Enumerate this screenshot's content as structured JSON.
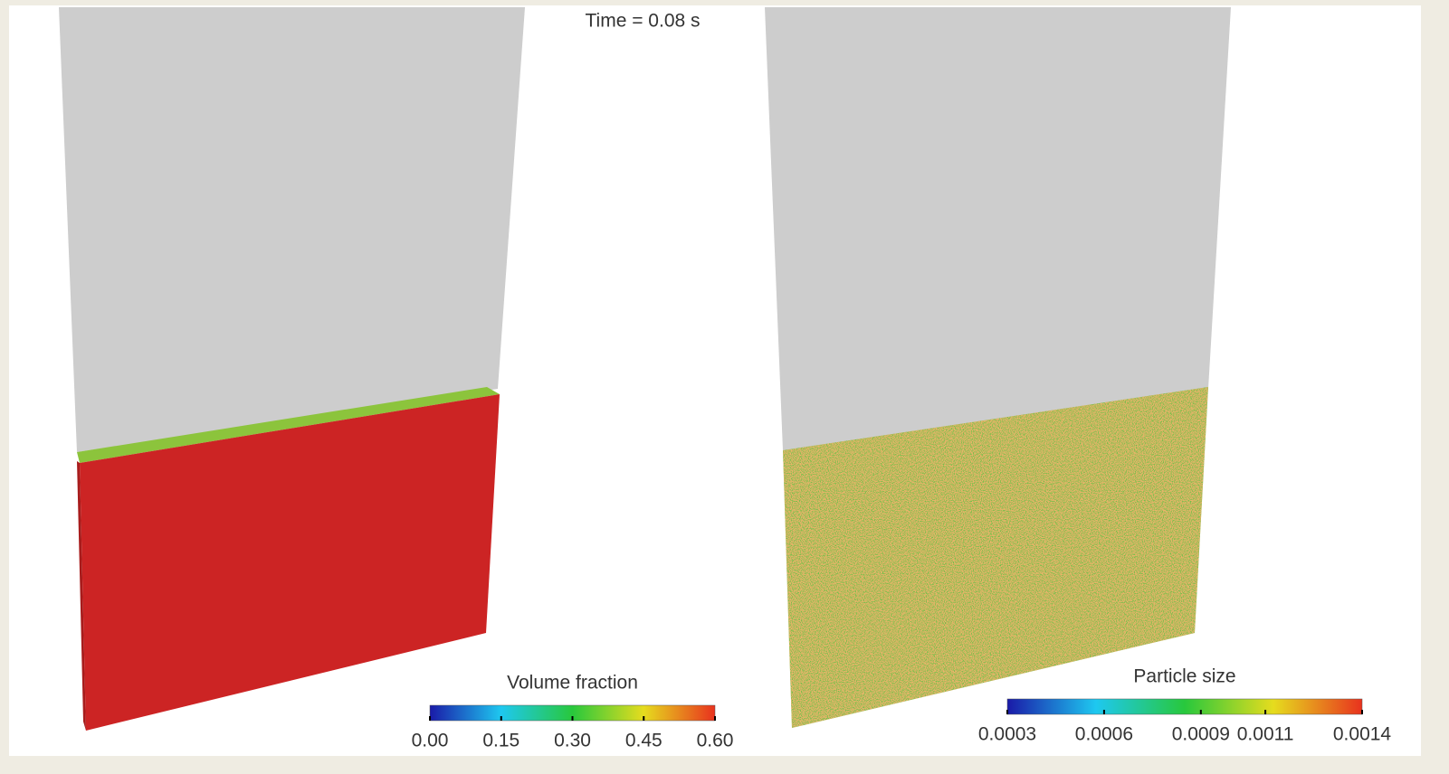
{
  "title": "Time = 0.08 s",
  "panels": [
    {
      "colorbar": {
        "title": "Volume fraction",
        "lim": [
          0,
          0.6
        ],
        "ticks": [
          {
            "value": 0,
            "label": "0.00"
          },
          0.15,
          {
            "value": 0.3,
            "label": "0.30"
          },
          0.45,
          {
            "value": 0.6,
            "label": "0.60"
          }
        ]
      }
    },
    {
      "colorbar": {
        "title": "Particle size",
        "lim": [
          0.0003,
          0.0014
        ],
        "ticks": [
          0.0003,
          0.0006,
          0.0009,
          0.0011,
          0.0014
        ]
      }
    }
  ]
}
